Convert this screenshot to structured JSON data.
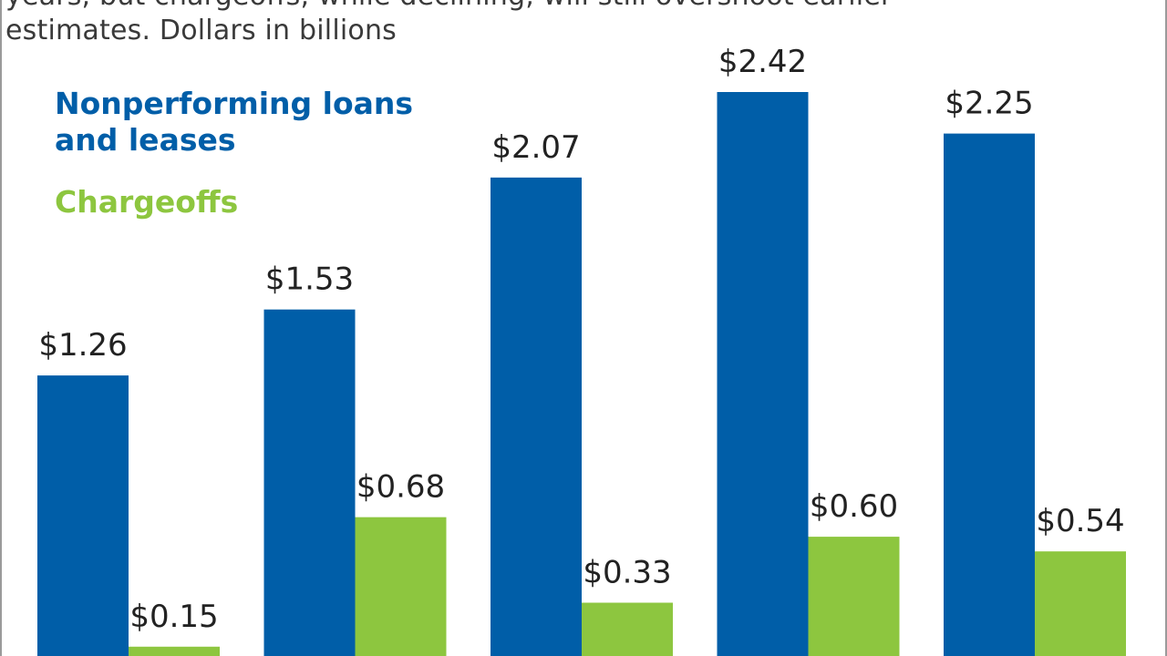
{
  "chart_data": {
    "type": "bar",
    "subtitle_lines": [
      "years, but chargeoffs, while declining, will still overshoot earlier",
      "estimates. Dollars in billions"
    ],
    "series": [
      {
        "name_lines": [
          "Nonperforming loans",
          "and leases"
        ],
        "color": "#005ea8",
        "values": [
          1.26,
          1.53,
          2.07,
          2.42,
          2.25
        ],
        "labels": [
          "$1.26",
          "$1.53",
          "$2.07",
          "$2.42",
          "$2.25"
        ]
      },
      {
        "name_lines": [
          "Chargeoffs"
        ],
        "color": "#8dc63f",
        "values": [
          0.15,
          0.68,
          0.33,
          0.6,
          0.54
        ],
        "labels": [
          "$0.15",
          "$0.68",
          "$0.33",
          "$0.60",
          "$0.54"
        ]
      }
    ],
    "ylim": [
      0,
      2.42
    ],
    "grid": false,
    "legend_position": "top-left"
  }
}
